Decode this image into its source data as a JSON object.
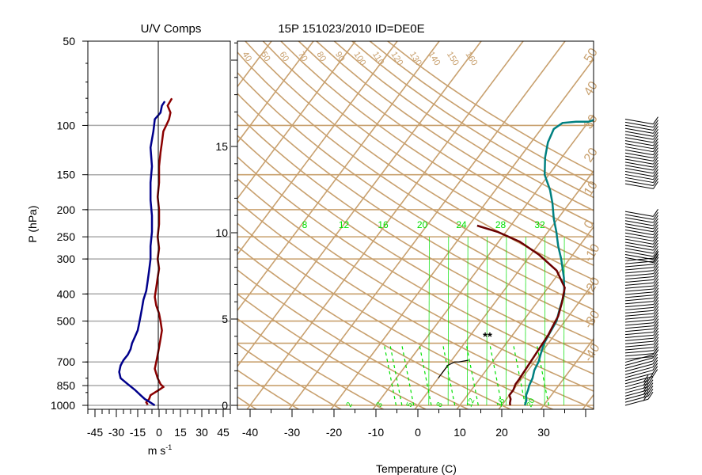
{
  "chart_data": [
    {
      "type": "line",
      "title": "U/V Comps",
      "ylabel": "P (hPa)",
      "xlabel_base": "m s",
      "xlabel_sup": "-1",
      "x_ticks": [
        "-45",
        "-30",
        "-15",
        "0",
        "15",
        "30",
        "45"
      ],
      "x_tick_values": [
        -45,
        -30,
        -15,
        0,
        15,
        30,
        45
      ],
      "y_ticks": [
        "50",
        "100",
        "150",
        "200",
        "250",
        "300",
        "400",
        "500",
        "700",
        "850",
        "1000"
      ],
      "y_tick_values": [
        50,
        100,
        150,
        200,
        250,
        300,
        400,
        500,
        700,
        850,
        1000
      ],
      "xlim": [
        -50,
        50
      ],
      "ylim": [
        1000,
        50
      ],
      "series": [
        {
          "color": "#8b0000",
          "points": [
            [
              -8,
              995
            ],
            [
              -9,
              975
            ],
            [
              -7,
              950
            ],
            [
              -6,
              920
            ],
            [
              -3,
              900
            ],
            [
              0,
              880
            ],
            [
              3,
              860
            ],
            [
              1,
              840
            ],
            [
              -1,
              800
            ],
            [
              -2,
              770
            ],
            [
              -3,
              740
            ],
            [
              -2,
              700
            ],
            [
              -1,
              660
            ],
            [
              0,
              620
            ],
            [
              1,
              580
            ],
            [
              2,
              540
            ],
            [
              1,
              500
            ],
            [
              0,
              470
            ],
            [
              -2,
              440
            ],
            [
              -3,
              410
            ],
            [
              -2,
              380
            ],
            [
              -1,
              350
            ],
            [
              0,
              325
            ],
            [
              -1,
              300
            ],
            [
              0,
              275
            ],
            [
              -1,
              250
            ],
            [
              0,
              225
            ],
            [
              0,
              200
            ],
            [
              -1,
              180
            ],
            [
              0,
              160
            ],
            [
              0,
              140
            ],
            [
              1,
              125
            ],
            [
              2,
              115
            ],
            [
              3,
              105
            ],
            [
              5,
              100
            ],
            [
              7,
              95
            ],
            [
              8,
              90
            ],
            [
              6,
              85
            ],
            [
              9,
              80
            ]
          ]
        },
        {
          "color": "#00008b",
          "points": [
            [
              -3,
              1000
            ],
            [
              -5,
              985
            ],
            [
              -7,
              970
            ],
            [
              -10,
              950
            ],
            [
              -13,
              920
            ],
            [
              -17,
              880
            ],
            [
              -22,
              840
            ],
            [
              -27,
              800
            ],
            [
              -28,
              760
            ],
            [
              -27,
              720
            ],
            [
              -25,
              690
            ],
            [
              -22,
              660
            ],
            [
              -20,
              630
            ],
            [
              -19,
              600
            ],
            [
              -17,
              570
            ],
            [
              -15,
              540
            ],
            [
              -14,
              510
            ],
            [
              -13,
              480
            ],
            [
              -12,
              450
            ],
            [
              -11,
              420
            ],
            [
              -9,
              390
            ],
            [
              -8,
              360
            ],
            [
              -7,
              330
            ],
            [
              -6,
              300
            ],
            [
              -6,
              270
            ],
            [
              -5,
              240
            ],
            [
              -5,
              210
            ],
            [
              -6,
              185
            ],
            [
              -6,
              160
            ],
            [
              -5,
              140
            ],
            [
              -6,
              120
            ],
            [
              -4,
              105
            ],
            [
              -3,
              95
            ],
            [
              1,
              90
            ],
            [
              2,
              85
            ],
            [
              4,
              82
            ]
          ]
        }
      ]
    },
    {
      "type": "line",
      "title": "15P 151023/2010 ID=DE0E",
      "xlabel": "Temperature (C)",
      "x_ticks": [
        "-40",
        "-30",
        "-20",
        "-10",
        "0",
        "10",
        "20",
        "30"
      ],
      "x_tick_values": [
        -40,
        -30,
        -20,
        -10,
        0,
        10,
        20,
        30
      ],
      "height_ticks": [
        "0",
        "5",
        "10",
        "15"
      ],
      "height_tick_values": [
        0,
        5,
        10,
        15
      ],
      "xlim": [
        -40,
        30
      ],
      "isotherm_labels": [
        "40",
        "50",
        "60",
        "70",
        "80",
        "90",
        "100",
        "110",
        "120",
        "130",
        "140",
        "150",
        "160"
      ],
      "dry_adiabat_labels": [
        "50",
        "40",
        "30",
        "20",
        "10",
        "0",
        "-10",
        "-20",
        "-30",
        "-40"
      ],
      "dry_adiabat_values": [
        50,
        40,
        30,
        20,
        10,
        0,
        -10,
        -20,
        -30,
        -40
      ],
      "mixing_ratio_labels": [
        "8",
        "12",
        "16",
        "20",
        "24",
        "28",
        "32"
      ],
      "mixing_ratio_values": [
        8,
        12,
        16,
        20,
        24,
        28,
        32
      ],
      "bottom_labels": [
        "2",
        "3",
        "5",
        "8",
        "12",
        "16",
        "20"
      ],
      "marker": "**",
      "colors": {
        "background_lines": "#c8a06e",
        "mixing_ratio": "#00e000",
        "temperature": "#008080",
        "parcel": "#6b0000"
      },
      "series": [
        {
          "name": "temperature",
          "color": "#008080",
          "points": [
            [
              25.5,
              1000
            ],
            [
              25,
              960
            ],
            [
              24,
              920
            ],
            [
              23.5,
              880
            ],
            [
              23,
              850
            ],
            [
              22.5,
              800
            ],
            [
              21.5,
              750
            ],
            [
              21,
              700
            ],
            [
              20,
              650
            ],
            [
              19,
              600
            ],
            [
              18.5,
              550
            ],
            [
              18,
              500
            ],
            [
              16.5,
              450
            ],
            [
              15,
              400
            ],
            [
              12,
              350
            ],
            [
              8,
              300
            ],
            [
              5,
              270
            ],
            [
              2,
              240
            ],
            [
              -1,
              215
            ],
            [
              -4,
              190
            ],
            [
              -7,
              170
            ],
            [
              -11,
              150
            ],
            [
              -14,
              130
            ],
            [
              -16,
              115
            ],
            [
              -17,
              103
            ],
            [
              -16,
              98
            ],
            [
              -13,
              97
            ],
            [
              -10,
              97
            ],
            [
              -8,
              94
            ],
            [
              -6,
              88
            ],
            [
              -6,
              83
            ],
            [
              -4,
              80
            ],
            [
              -2,
              78
            ],
            [
              2,
              76
            ],
            [
              4,
              74
            ],
            [
              6,
              73
            ]
          ]
        },
        {
          "name": "parcel",
          "color": "#6b0000",
          "points": [
            [
              22,
              1000
            ],
            [
              21.5,
              980
            ],
            [
              21,
              950
            ],
            [
              20,
              920
            ],
            [
              20,
              880
            ],
            [
              19.5,
              840
            ],
            [
              19.5,
              810
            ],
            [
              18.5,
              560
            ],
            [
              18,
              520
            ],
            [
              17.5,
              480
            ],
            [
              16,
              430
            ],
            [
              14,
              380
            ],
            [
              9,
              330
            ],
            [
              2,
              290
            ],
            [
              -5,
              260
            ],
            [
              -12,
              240
            ],
            [
              -18,
              228
            ]
          ]
        },
        {
          "name": "lcl-path",
          "color": "#000000",
          "points": [
            [
              0,
              800
            ],
            [
              0,
              760
            ],
            [
              0,
              720
            ],
            [
              1,
              700
            ],
            [
              2,
              700
            ],
            [
              4,
              690
            ]
          ]
        }
      ]
    }
  ]
}
